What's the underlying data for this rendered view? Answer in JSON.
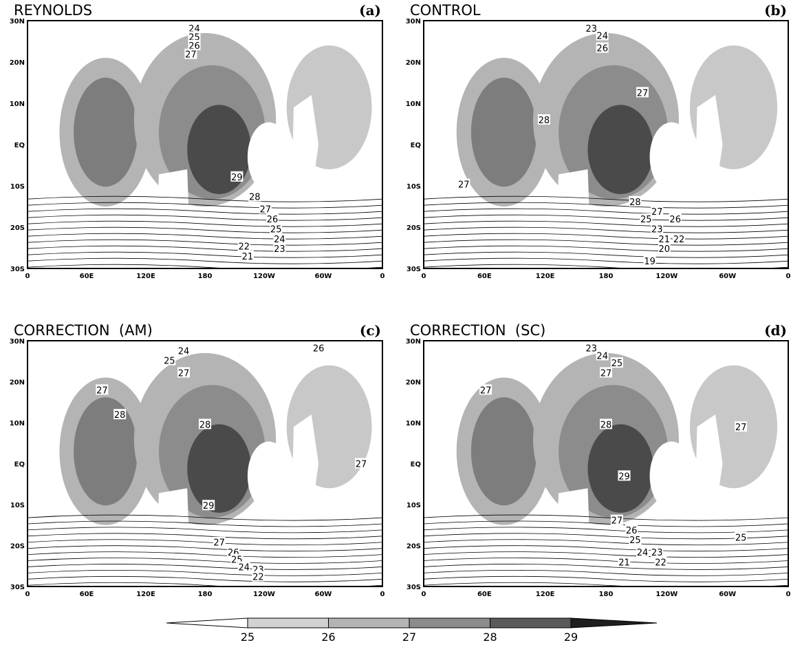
{
  "panels": [
    {
      "title": "REYNOLDS",
      "letter": "(a)",
      "contour_labels": [
        "24",
        "25",
        "26",
        "27",
        "29",
        "28",
        "27",
        "26",
        "25",
        "24",
        "23",
        "22",
        "21"
      ]
    },
    {
      "title": "CONTROL",
      "letter": "(b)",
      "contour_labels": [
        "23",
        "24",
        "26",
        "27",
        "28",
        "27",
        "28",
        "27",
        "26",
        "25",
        "23",
        "21",
        "22",
        "20",
        "19"
      ]
    },
    {
      "title": "CORRECTION  (AM)",
      "letter": "(c)",
      "contour_labels": [
        "24",
        "25",
        "27",
        "26",
        "27",
        "28",
        "28",
        "29",
        "27",
        "26",
        "25",
        "24",
        "23",
        "22",
        "27"
      ]
    },
    {
      "title": "CORRECTION  (SC)",
      "letter": "(d)",
      "contour_labels": [
        "23",
        "24",
        "25",
        "27",
        "27",
        "28",
        "27",
        "29",
        "27",
        "26",
        "25",
        "24",
        "23",
        "21",
        "22",
        "25"
      ]
    }
  ],
  "lat_ticks": [
    "30N",
    "20N",
    "10N",
    "EQ",
    "10S",
    "20S",
    "30S"
  ],
  "lon_ticks": [
    "0",
    "60E",
    "120E",
    "180",
    "120W",
    "60W",
    "0"
  ],
  "colorbar": {
    "labels": [
      "25",
      "26",
      "27",
      "28",
      "29"
    ]
  }
}
